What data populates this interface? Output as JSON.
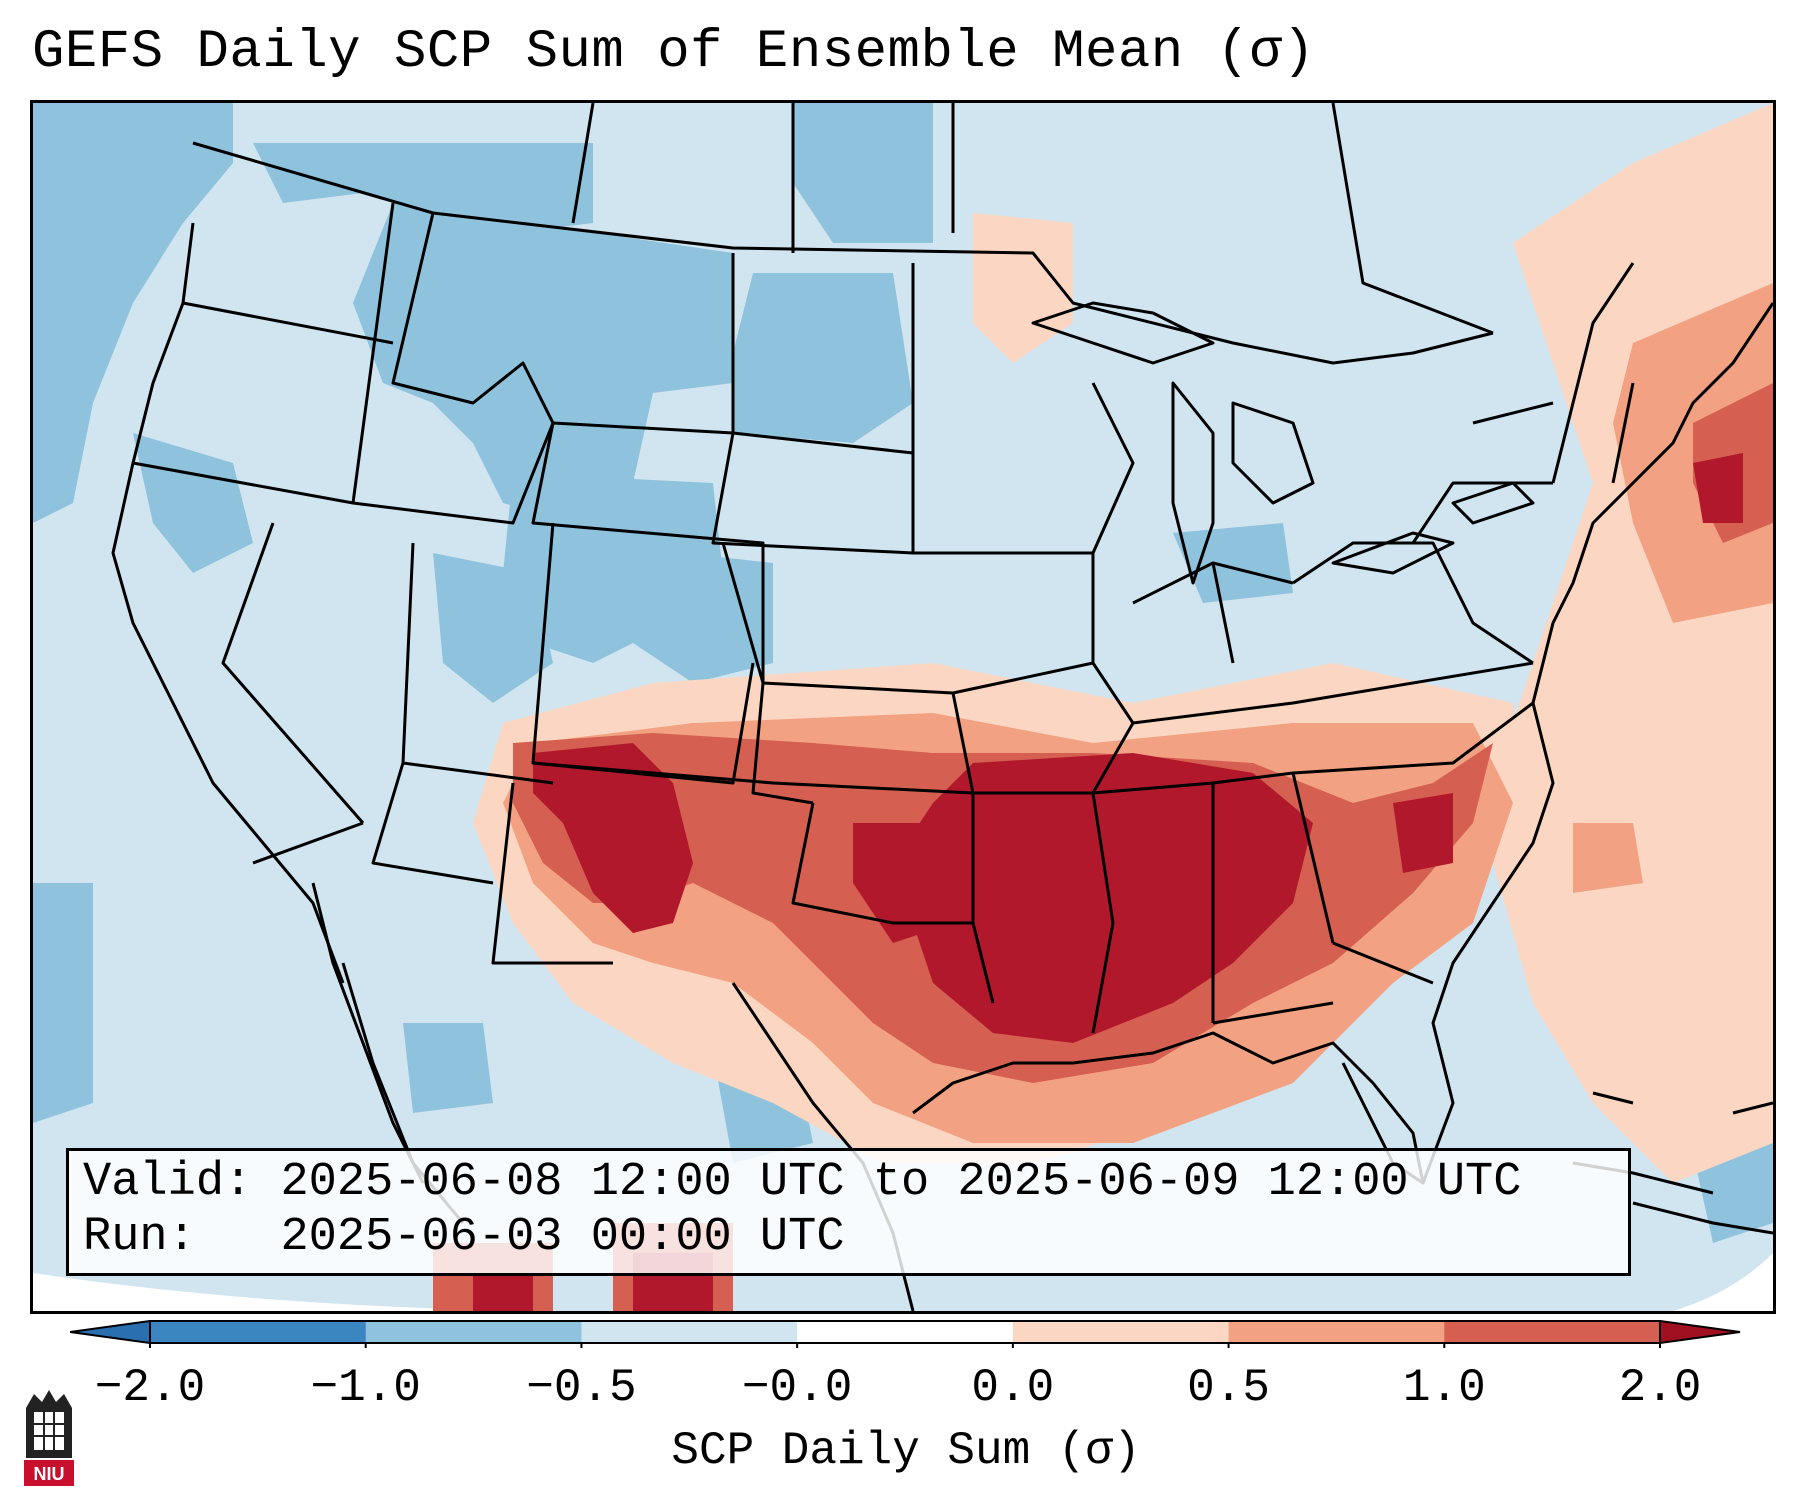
{
  "title": "GEFS Daily SCP Sum of Ensemble Mean (σ)",
  "info": {
    "valid_label": "Valid:",
    "valid_value": "2025-06-08 12:00 UTC to 2025-06-09 12:00 UTC",
    "run_label": "Run:",
    "run_value": "2025-06-03 00:00 UTC"
  },
  "colorbar": {
    "label": "SCP Daily Sum (σ)",
    "ticks": [
      "−2.0",
      "−1.0",
      "−0.5",
      "−0.0",
      "0.0",
      "0.5",
      "1.0",
      "2.0"
    ],
    "colors": [
      "#3b86c0",
      "#8fc3dd",
      "#d1e5f0",
      "#ffffff",
      "#fbd7c3",
      "#f2a282",
      "#d55f50",
      "#b2182b"
    ],
    "extend_low_color": "#2a6fb0",
    "extend_high_color": "#a01020"
  },
  "map": {
    "region": "Contiguous United States",
    "ocean_color": "#d1e5f0",
    "outside_color": "#ffffff"
  },
  "logo": {
    "text": "NIU"
  }
}
